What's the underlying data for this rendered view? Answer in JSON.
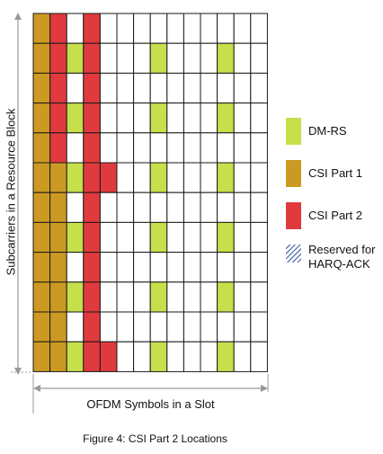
{
  "grid": {
    "rows": 12,
    "cols": 14,
    "colors": {
      "empty": "#ffffff",
      "dmrs": "#c5e04b",
      "csi1": "#cc9a22",
      "csi2": "#e03a3e",
      "harq": "#2b4fa0",
      "line": "#1a1a1a"
    },
    "cells": [
      [
        "csi1",
        "csi2",
        "empty",
        "csi2",
        "empty",
        "empty",
        "empty",
        "empty",
        "empty",
        "empty",
        "empty",
        "empty",
        "empty",
        "empty"
      ],
      [
        "csi1",
        "csi2",
        "dmrs",
        "csi2",
        "empty",
        "empty",
        "empty",
        "dmrs",
        "empty",
        "empty",
        "empty",
        "dmrs",
        "empty",
        "empty"
      ],
      [
        "csi1",
        "csi2",
        "empty",
        "csi2",
        "empty",
        "empty",
        "empty",
        "empty",
        "empty",
        "empty",
        "empty",
        "empty",
        "empty",
        "empty"
      ],
      [
        "csi1",
        "csi2",
        "dmrs",
        "csi2",
        "empty",
        "empty",
        "empty",
        "dmrs",
        "empty",
        "empty",
        "empty",
        "dmrs",
        "empty",
        "empty"
      ],
      [
        "csi1",
        "csi2",
        "empty",
        "csi2",
        "empty",
        "empty",
        "empty",
        "empty",
        "empty",
        "empty",
        "empty",
        "empty",
        "empty",
        "empty"
      ],
      [
        "csi1",
        "csi1",
        "dmrs",
        "csi2",
        "csi2",
        "empty",
        "empty",
        "dmrs",
        "empty",
        "empty",
        "empty",
        "dmrs",
        "empty",
        "empty"
      ],
      [
        "csi1",
        "csi1",
        "empty",
        "csi2",
        "empty",
        "empty",
        "empty",
        "empty",
        "empty",
        "empty",
        "empty",
        "empty",
        "empty",
        "empty"
      ],
      [
        "csi1",
        "csi1",
        "dmrs",
        "csi2",
        "empty",
        "empty",
        "empty",
        "dmrs",
        "empty",
        "empty",
        "empty",
        "dmrs",
        "empty",
        "empty"
      ],
      [
        "csi1",
        "csi1",
        "empty",
        "csi2",
        "empty",
        "empty",
        "empty",
        "empty",
        "empty",
        "empty",
        "empty",
        "empty",
        "empty",
        "empty"
      ],
      [
        "csi1",
        "csi1",
        "dmrs",
        "csi2",
        "empty",
        "empty",
        "empty",
        "dmrs",
        "empty",
        "empty",
        "empty",
        "dmrs",
        "empty",
        "empty"
      ],
      [
        "csi1",
        "csi1",
        "empty",
        "csi2",
        "empty",
        "empty",
        "empty",
        "empty",
        "empty",
        "empty",
        "empty",
        "empty",
        "empty",
        "empty"
      ],
      [
        "csi1",
        "csi1",
        "dmrs",
        "csi2",
        "csi2",
        "empty",
        "empty",
        "dmrs",
        "empty",
        "empty",
        "empty",
        "dmrs",
        "empty",
        "empty"
      ]
    ]
  },
  "legend": [
    {
      "key": "dmrs",
      "label": "DM-RS"
    },
    {
      "key": "csi1",
      "label": "CSI Part 1"
    },
    {
      "key": "csi2",
      "label": "CSI Part 2"
    },
    {
      "key": "harq",
      "label": "Reserved for\nHARQ-ACK"
    }
  ],
  "y_axis_label": "Subcarriers in a Resource Block",
  "x_axis_label": "OFDM Symbols in a Slot",
  "caption": "Figure 4: CSI Part 2 Locations"
}
